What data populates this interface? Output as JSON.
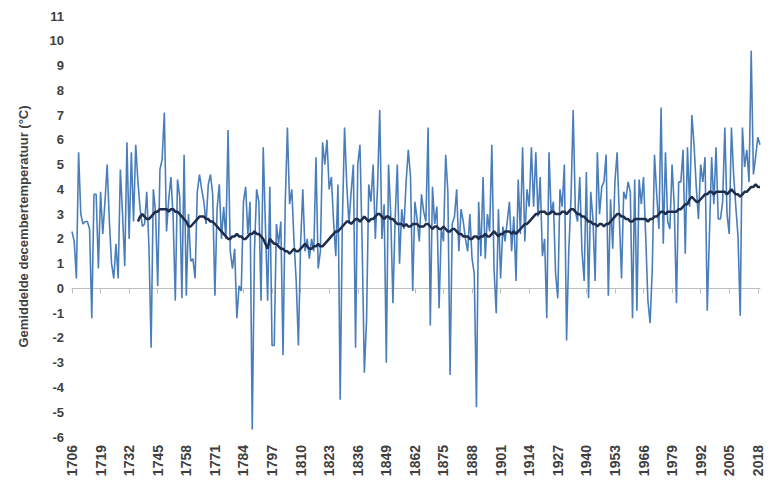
{
  "chart_data": {
    "type": "line",
    "ylabel": "Gemiddelde decembertemperatuur (°C)",
    "x": [
      1706,
      1707,
      1708,
      1709,
      1710,
      1711,
      1712,
      1713,
      1714,
      1715,
      1716,
      1717,
      1718,
      1719,
      1720,
      1721,
      1722,
      1723,
      1724,
      1725,
      1726,
      1727,
      1728,
      1729,
      1730,
      1731,
      1732,
      1733,
      1734,
      1735,
      1736,
      1737,
      1738,
      1739,
      1740,
      1741,
      1742,
      1743,
      1744,
      1745,
      1746,
      1747,
      1748,
      1749,
      1750,
      1751,
      1752,
      1753,
      1754,
      1755,
      1756,
      1757,
      1758,
      1759,
      1760,
      1761,
      1762,
      1763,
      1764,
      1765,
      1766,
      1767,
      1768,
      1769,
      1770,
      1771,
      1772,
      1773,
      1774,
      1775,
      1776,
      1777,
      1778,
      1779,
      1780,
      1781,
      1782,
      1783,
      1784,
      1785,
      1786,
      1787,
      1788,
      1789,
      1790,
      1791,
      1792,
      1793,
      1794,
      1795,
      1796,
      1797,
      1798,
      1799,
      1800,
      1801,
      1802,
      1803,
      1804,
      1805,
      1806,
      1807,
      1808,
      1809,
      1810,
      1811,
      1812,
      1813,
      1814,
      1815,
      1816,
      1817,
      1818,
      1819,
      1820,
      1821,
      1822,
      1823,
      1824,
      1825,
      1826,
      1827,
      1828,
      1829,
      1830,
      1831,
      1832,
      1833,
      1834,
      1835,
      1836,
      1837,
      1838,
      1839,
      1840,
      1841,
      1842,
      1843,
      1844,
      1845,
      1846,
      1847,
      1848,
      1849,
      1850,
      1851,
      1852,
      1853,
      1854,
      1855,
      1856,
      1857,
      1858,
      1859,
      1860,
      1861,
      1862,
      1863,
      1864,
      1865,
      1866,
      1867,
      1868,
      1869,
      1870,
      1871,
      1872,
      1873,
      1874,
      1875,
      1876,
      1877,
      1878,
      1879,
      1880,
      1881,
      1882,
      1883,
      1884,
      1885,
      1886,
      1887,
      1888,
      1889,
      1890,
      1891,
      1892,
      1893,
      1894,
      1895,
      1896,
      1897,
      1898,
      1899,
      1900,
      1901,
      1902,
      1903,
      1904,
      1905,
      1906,
      1907,
      1908,
      1909,
      1910,
      1911,
      1912,
      1913,
      1914,
      1915,
      1916,
      1917,
      1918,
      1919,
      1920,
      1921,
      1922,
      1923,
      1924,
      1925,
      1926,
      1927,
      1928,
      1929,
      1930,
      1931,
      1932,
      1933,
      1934,
      1935,
      1936,
      1937,
      1938,
      1939,
      1940,
      1941,
      1942,
      1943,
      1944,
      1945,
      1946,
      1947,
      1948,
      1949,
      1950,
      1951,
      1952,
      1953,
      1954,
      1955,
      1956,
      1957,
      1958,
      1959,
      1960,
      1961,
      1962,
      1963,
      1964,
      1965,
      1966,
      1967,
      1968,
      1969,
      1970,
      1971,
      1972,
      1973,
      1974,
      1975,
      1976,
      1977,
      1978,
      1979,
      1980,
      1981,
      1982,
      1983,
      1984,
      1985,
      1986,
      1987,
      1988,
      1989,
      1990,
      1991,
      1992,
      1993,
      1994,
      1995,
      1996,
      1997,
      1998,
      1999,
      2000,
      2001,
      2002,
      2003,
      2004,
      2005,
      2006,
      2007,
      2008,
      2009,
      2010,
      2011,
      2012,
      2013,
      2014,
      2015,
      2016,
      2017,
      2018,
      2019
    ],
    "xlim": [
      1706,
      2019
    ],
    "xticks": [
      1706,
      1719,
      1732,
      1745,
      1758,
      1771,
      1784,
      1797,
      1810,
      1823,
      1836,
      1849,
      1862,
      1875,
      1888,
      1901,
      1914,
      1927,
      1940,
      1953,
      1966,
      1979,
      1992,
      2005,
      2018
    ],
    "ylim": [
      -6,
      11
    ],
    "yticks": [
      -6,
      -5,
      -4,
      -3,
      -2,
      -1,
      0,
      1,
      2,
      3,
      4,
      5,
      6,
      7,
      8,
      9,
      10,
      11
    ],
    "grid": false,
    "series": [
      {
        "color": "#4a7ebb",
        "values": [
          2.3,
          1.9,
          0.4,
          5.5,
          3.0,
          2.6,
          2.7,
          2.7,
          2.4,
          -1.2,
          3.8,
          3.8,
          0.8,
          3.9,
          2.2,
          3.5,
          5.0,
          2.7,
          1.0,
          0.4,
          1.8,
          0.4,
          4.8,
          3.0,
          0.9,
          5.9,
          2.0,
          5.5,
          2.7,
          5.8,
          4.3,
          3.2,
          2.5,
          2.6,
          3.9,
          1.7,
          -2.4,
          4.0,
          3.1,
          0.1,
          4.8,
          5.2,
          7.1,
          2.3,
          3.6,
          4.5,
          2.9,
          -0.5,
          4.4,
          3.7,
          -0.4,
          5.4,
          -0.3,
          3.0,
          1.1,
          1.2,
          0.4,
          3.9,
          4.6,
          4.0,
          3.5,
          2.6,
          4.2,
          4.6,
          3.8,
          -0.3,
          3.2,
          4.2,
          2.0,
          3.3,
          2.0,
          6.4,
          1.5,
          0.8,
          1.6,
          -1.2,
          0.1,
          -0.1,
          3.5,
          4.1,
          2.2,
          3.5,
          -5.7,
          1.5,
          4.0,
          3.5,
          -0.5,
          5.7,
          2.5,
          -0.5,
          4.1,
          -2.3,
          -2.3,
          2.6,
          1.8,
          2.7,
          -2.7,
          3.4,
          6.5,
          3.4,
          4.0,
          1.9,
          0.3,
          -2.3,
          1.8,
          4.0,
          1.5,
          2.0,
          1.2,
          2.0,
          1.5,
          5.3,
          0.8,
          1.5,
          5.9,
          5.0,
          6.0,
          4.0,
          4.5,
          2.7,
          1.3,
          4.2,
          -4.5,
          2.7,
          6.5,
          4.2,
          2.6,
          3.9,
          5.0,
          -2.4,
          5.0,
          5.8,
          1.8,
          -3.4,
          -1.3,
          4.2,
          3.5,
          5.0,
          2.0,
          4.1,
          7.2,
          2.0,
          3.4,
          -3.0,
          5.0,
          3.0,
          -0.6,
          2.8,
          5.0,
          1.0,
          3.2,
          2.4,
          4.3,
          5.6,
          4.5,
          -0.1,
          3.5,
          2.8,
          1.9,
          3.8,
          3.1,
          2.7,
          6.5,
          -1.5,
          4.1,
          2.6,
          3.3,
          -0.8,
          2.4,
          1.9,
          5.4,
          3.9,
          -3.5,
          2.6,
          2.9,
          4.0,
          1.5,
          3.2,
          2.7,
          2.0,
          1.5,
          3.0,
          1.2,
          0.6,
          -4.8,
          3.5,
          1.3,
          4.5,
          1.2,
          3.0,
          2.3,
          5.8,
          0.8,
          -1.0,
          3.2,
          0.4,
          2.5,
          1.9,
          2.7,
          3.5,
          1.5,
          2.9,
          0.3,
          4.4,
          2.2,
          5.7,
          1.9,
          4.0,
          3.3,
          5.7,
          3.3,
          5.5,
          2.9,
          4.5,
          1.3,
          2.0,
          -1.2,
          5.5,
          3.0,
          3.5,
          0.6,
          -0.4,
          4.0,
          3.3,
          5.0,
          -2.1,
          1.5,
          3.6,
          7.2,
          3.1,
          2.7,
          4.5,
          1.5,
          0.3,
          4.7,
          -0.4,
          3.9,
          2.8,
          0.3,
          5.5,
          3.0,
          4.1,
          4.3,
          5.4,
          -0.3,
          3.6,
          1.6,
          4.3,
          5.5,
          2.9,
          0.4,
          3.9,
          3.6,
          4.3,
          3.9,
          -1.2,
          4.4,
          -0.9,
          4.4,
          3.4,
          4.5,
          2.1,
          -0.5,
          -1.4,
          0.8,
          5.4,
          3.8,
          2.4,
          7.3,
          1.8,
          5.5,
          2.7,
          2.4,
          5.0,
          3.3,
          -0.6,
          4.3,
          4.3,
          5.6,
          1.4,
          5.7,
          3.3,
          7.0,
          5.8,
          4.1,
          2.8,
          5.0,
          4.3,
          5.3,
          -0.9,
          2.2,
          5.3,
          3.4,
          5.7,
          2.8,
          2.8,
          3.5,
          6.5,
          3.0,
          2.2,
          6.5,
          4.6,
          3.3,
          2.1,
          -1.1,
          6.5,
          4.9,
          5.6,
          4.3,
          9.6,
          4.6,
          5.3,
          6.1,
          5.8
        ]
      },
      {
        "color": "#1f2d4d",
        "values": [
          null,
          null,
          null,
          null,
          null,
          null,
          null,
          null,
          null,
          null,
          null,
          null,
          null,
          null,
          null,
          null,
          null,
          null,
          null,
          null,
          null,
          null,
          null,
          null,
          null,
          null,
          null,
          null,
          null,
          null,
          2.7,
          2.9,
          3.0,
          2.9,
          2.8,
          2.8,
          2.9,
          3.0,
          3.1,
          3.1,
          3.2,
          3.2,
          3.2,
          3.2,
          3.1,
          3.2,
          3.2,
          3.1,
          3.1,
          3.0,
          2.9,
          2.8,
          2.7,
          2.5,
          2.5,
          2.6,
          2.7,
          2.8,
          2.9,
          2.9,
          2.9,
          2.8,
          2.8,
          2.7,
          2.7,
          2.6,
          2.5,
          2.4,
          2.3,
          2.2,
          2.1,
          2.0,
          2.0,
          2.1,
          2.1,
          2.2,
          2.1,
          2.1,
          2.0,
          2.0,
          2.1,
          2.2,
          2.2,
          2.3,
          2.2,
          2.2,
          2.1,
          2.0,
          1.8,
          1.6,
          2.0,
          1.9,
          1.8,
          1.8,
          1.7,
          1.6,
          1.6,
          1.5,
          1.5,
          1.4,
          1.5,
          1.6,
          1.5,
          1.5,
          1.6,
          1.7,
          1.8,
          1.7,
          1.6,
          1.6,
          1.7,
          1.7,
          1.8,
          1.7,
          1.7,
          1.8,
          1.9,
          2.0,
          2.1,
          2.2,
          2.3,
          2.3,
          2.4,
          2.5,
          2.6,
          2.7,
          2.7,
          2.6,
          2.7,
          2.8,
          2.8,
          2.7,
          2.8,
          2.9,
          2.8,
          2.7,
          2.8,
          2.8,
          2.9,
          3.0,
          3.0,
          2.9,
          2.8,
          2.9,
          2.9,
          2.8,
          2.8,
          2.7,
          2.6,
          2.6,
          2.6,
          2.5,
          2.6,
          2.5,
          2.5,
          2.6,
          2.6,
          2.6,
          2.5,
          2.5,
          2.5,
          2.6,
          2.6,
          2.5,
          2.4,
          2.5,
          2.5,
          2.4,
          2.4,
          2.5,
          2.4,
          2.3,
          2.3,
          2.4,
          2.4,
          2.3,
          2.2,
          2.2,
          2.1,
          2.1,
          2.1,
          2.0,
          2.0,
          2.1,
          2.1,
          2.0,
          2.1,
          2.1,
          2.2,
          2.1,
          2.1,
          2.2,
          2.3,
          2.2,
          2.1,
          2.2,
          2.2,
          2.3,
          2.3,
          2.3,
          2.2,
          2.3,
          2.2,
          2.3,
          2.4,
          2.5,
          2.6,
          2.6,
          2.7,
          2.8,
          2.9,
          3.0,
          3.0,
          3.1,
          3.1,
          3.1,
          3.0,
          3.0,
          3.1,
          3.1,
          3.0,
          3.0,
          3.0,
          3.1,
          3.1,
          3.0,
          3.1,
          3.2,
          3.2,
          3.1,
          3.0,
          3.0,
          2.9,
          2.9,
          2.8,
          2.7,
          2.7,
          2.6,
          2.6,
          2.5,
          2.6,
          2.6,
          2.5,
          2.6,
          2.6,
          2.7,
          2.8,
          2.9,
          3.0,
          3.0,
          2.9,
          2.9,
          2.8,
          2.8,
          2.7,
          2.7,
          2.8,
          2.8,
          2.8,
          2.8,
          2.8,
          2.8,
          2.7,
          2.8,
          2.8,
          2.9,
          2.9,
          3.0,
          3.1,
          3.1,
          3.0,
          3.1,
          3.1,
          3.1,
          3.1,
          3.1,
          3.2,
          3.2,
          3.3,
          3.4,
          3.4,
          3.6,
          3.7,
          3.6,
          3.5,
          3.5,
          3.6,
          3.7,
          3.8,
          3.8,
          3.9,
          3.9,
          3.8,
          3.9,
          3.9,
          3.9,
          3.9,
          3.9,
          3.8,
          3.9,
          4.0,
          3.9,
          3.8,
          3.8,
          3.7,
          3.8,
          3.9,
          3.9,
          4.0,
          4.1,
          4.1,
          4.2,
          4.1,
          4.1
        ]
      }
    ]
  }
}
